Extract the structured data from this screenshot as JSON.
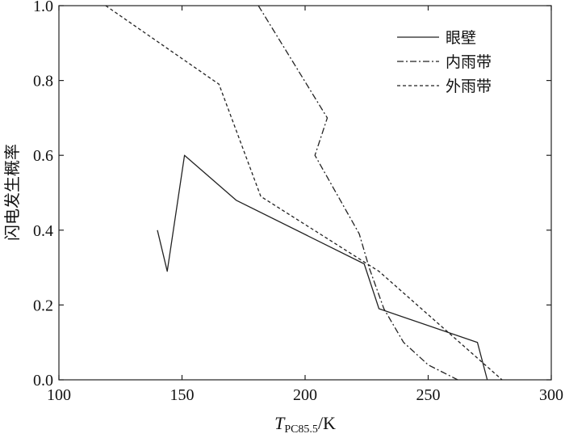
{
  "chart_data": {
    "type": "line",
    "xlabel": {
      "main": "T",
      "sub": "PC85.5",
      "unit": "/K"
    },
    "ylabel": "闪电发生概率",
    "xlim": [
      100,
      300
    ],
    "ylim": [
      0.0,
      1.0
    ],
    "xticks": [
      "100",
      "150",
      "200",
      "250",
      "300"
    ],
    "yticks": [
      "0.0",
      "0.2",
      "0.4",
      "0.6",
      "0.8",
      "1.0"
    ],
    "grid": false,
    "legend_position": "top-right",
    "series": [
      {
        "name": "眼壁",
        "style": "solid",
        "x": [
          140,
          144,
          151,
          172,
          224,
          230,
          270,
          274
        ],
        "y": [
          0.4,
          0.29,
          0.6,
          0.48,
          0.31,
          0.19,
          0.1,
          0.0
        ]
      },
      {
        "name": "内雨带",
        "style": "dashdot",
        "x": [
          181,
          209,
          204,
          222,
          226,
          232,
          240,
          250,
          262
        ],
        "y": [
          1.0,
          0.7,
          0.6,
          0.39,
          0.3,
          0.19,
          0.1,
          0.04,
          0.0
        ]
      },
      {
        "name": "外雨带",
        "style": "dashed",
        "x": [
          119,
          165,
          182,
          230,
          280
        ],
        "y": [
          1.0,
          0.79,
          0.49,
          0.29,
          0.0
        ]
      }
    ]
  }
}
